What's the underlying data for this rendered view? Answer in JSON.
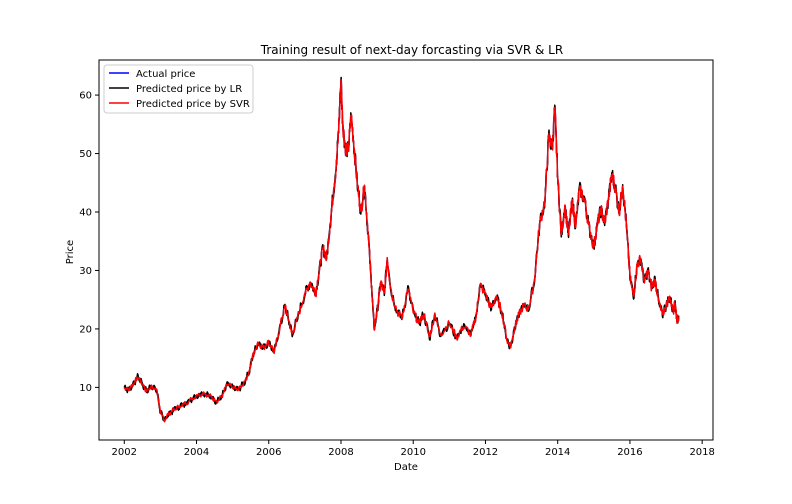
{
  "chart_data": {
    "type": "line",
    "title": "Training result of next-day forcasting via SVR & LR",
    "xlabel": "Date",
    "ylabel": "Price",
    "xlim": [
      2001.3,
      2018.3
    ],
    "ylim": [
      1,
      66
    ],
    "x_ticks": [
      2002,
      2004,
      2006,
      2008,
      2010,
      2012,
      2014,
      2016,
      2018
    ],
    "x_tick_labels": [
      "2002",
      "2004",
      "2006",
      "2008",
      "2010",
      "2012",
      "2014",
      "2016",
      "2018"
    ],
    "y_ticks": [
      10,
      20,
      30,
      40,
      50,
      60
    ],
    "y_tick_labels": [
      "10",
      "20",
      "30",
      "40",
      "50",
      "60"
    ],
    "grid": false,
    "legend_position": "top-left",
    "series": [
      {
        "name": "Actual price",
        "color": "#0000ff",
        "points": [
          [
            2002.0,
            10.0
          ],
          [
            2002.12,
            9.6
          ],
          [
            2002.25,
            10.6
          ],
          [
            2002.38,
            11.8
          ],
          [
            2002.5,
            10.6
          ],
          [
            2002.62,
            9.3
          ],
          [
            2002.75,
            10.2
          ],
          [
            2002.9,
            9.5
          ],
          [
            2003.0,
            5.8
          ],
          [
            2003.1,
            4.4
          ],
          [
            2003.25,
            5.6
          ],
          [
            2003.4,
            6.3
          ],
          [
            2003.6,
            6.9
          ],
          [
            2003.8,
            7.7
          ],
          [
            2004.0,
            8.6
          ],
          [
            2004.2,
            9.0
          ],
          [
            2004.4,
            8.4
          ],
          [
            2004.55,
            7.6
          ],
          [
            2004.7,
            8.4
          ],
          [
            2004.85,
            10.6
          ],
          [
            2005.0,
            10.0
          ],
          [
            2005.15,
            9.6
          ],
          [
            2005.3,
            10.6
          ],
          [
            2005.45,
            12.5
          ],
          [
            2005.55,
            15.2
          ],
          [
            2005.7,
            17.6
          ],
          [
            2005.85,
            16.8
          ],
          [
            2006.0,
            17.8
          ],
          [
            2006.15,
            16.0
          ],
          [
            2006.3,
            20.0
          ],
          [
            2006.45,
            24.0
          ],
          [
            2006.55,
            21.5
          ],
          [
            2006.65,
            19.0
          ],
          [
            2006.8,
            22.0
          ],
          [
            2007.0,
            26.0
          ],
          [
            2007.15,
            28.0
          ],
          [
            2007.3,
            26.0
          ],
          [
            2007.4,
            30.0
          ],
          [
            2007.5,
            34.0
          ],
          [
            2007.6,
            32.0
          ],
          [
            2007.7,
            38.0
          ],
          [
            2007.8,
            44.0
          ],
          [
            2007.88,
            48.5
          ],
          [
            2007.95,
            56.0
          ],
          [
            2008.0,
            62.7
          ],
          [
            2008.05,
            55.0
          ],
          [
            2008.12,
            51.0
          ],
          [
            2008.2,
            50.5
          ],
          [
            2008.28,
            56.5
          ],
          [
            2008.35,
            52.0
          ],
          [
            2008.45,
            45.0
          ],
          [
            2008.55,
            40.0
          ],
          [
            2008.65,
            44.5
          ],
          [
            2008.75,
            36.5
          ],
          [
            2008.85,
            27.0
          ],
          [
            2008.92,
            20.0
          ],
          [
            2009.0,
            23.0
          ],
          [
            2009.1,
            28.0
          ],
          [
            2009.2,
            26.0
          ],
          [
            2009.28,
            32.0
          ],
          [
            2009.4,
            26.0
          ],
          [
            2009.55,
            23.0
          ],
          [
            2009.7,
            22.0
          ],
          [
            2009.85,
            27.0
          ],
          [
            2010.0,
            23.0
          ],
          [
            2010.15,
            21.0
          ],
          [
            2010.3,
            22.5
          ],
          [
            2010.45,
            18.5
          ],
          [
            2010.6,
            22.5
          ],
          [
            2010.75,
            19.0
          ],
          [
            2011.0,
            21.0
          ],
          [
            2011.2,
            18.5
          ],
          [
            2011.4,
            20.5
          ],
          [
            2011.6,
            19.0
          ],
          [
            2011.75,
            22.5
          ],
          [
            2011.85,
            27.5
          ],
          [
            2012.0,
            26.0
          ],
          [
            2012.15,
            23.5
          ],
          [
            2012.3,
            25.5
          ],
          [
            2012.45,
            23.0
          ],
          [
            2012.6,
            18.0
          ],
          [
            2012.7,
            17.0
          ],
          [
            2012.8,
            20.0
          ],
          [
            2012.9,
            22.0
          ],
          [
            2013.05,
            24.0
          ],
          [
            2013.2,
            23.5
          ],
          [
            2013.35,
            28.0
          ],
          [
            2013.5,
            38.0
          ],
          [
            2013.65,
            42.0
          ],
          [
            2013.75,
            53.0
          ],
          [
            2013.85,
            51.0
          ],
          [
            2013.92,
            58.0
          ],
          [
            2014.0,
            46.0
          ],
          [
            2014.1,
            36.0
          ],
          [
            2014.2,
            41.0
          ],
          [
            2014.3,
            36.0
          ],
          [
            2014.4,
            42.0
          ],
          [
            2014.5,
            37.5
          ],
          [
            2014.6,
            44.0
          ],
          [
            2014.75,
            42.0
          ],
          [
            2014.85,
            38.0
          ],
          [
            2015.0,
            34.0
          ],
          [
            2015.1,
            38.0
          ],
          [
            2015.2,
            40.5
          ],
          [
            2015.3,
            38.0
          ],
          [
            2015.4,
            42.0
          ],
          [
            2015.5,
            46.5
          ],
          [
            2015.6,
            44.0
          ],
          [
            2015.7,
            40.0
          ],
          [
            2015.8,
            44.5
          ],
          [
            2015.9,
            38.0
          ],
          [
            2016.0,
            29.0
          ],
          [
            2016.1,
            25.5
          ],
          [
            2016.2,
            31.0
          ],
          [
            2016.3,
            32.0
          ],
          [
            2016.4,
            28.0
          ],
          [
            2016.5,
            30.0
          ],
          [
            2016.6,
            27.0
          ],
          [
            2016.7,
            28.5
          ],
          [
            2016.8,
            24.5
          ],
          [
            2016.9,
            22.5
          ],
          [
            2017.0,
            24.0
          ],
          [
            2017.1,
            25.5
          ],
          [
            2017.2,
            23.0
          ],
          [
            2017.25,
            24.5
          ],
          [
            2017.3,
            21.5
          ],
          [
            2017.35,
            22.0
          ]
        ]
      },
      {
        "name": "Predicted price by LR",
        "color": "#000000",
        "offset": 0.4
      },
      {
        "name": "Predicted price by SVR",
        "color": "#ff0000",
        "offset": -0.2
      }
    ]
  }
}
